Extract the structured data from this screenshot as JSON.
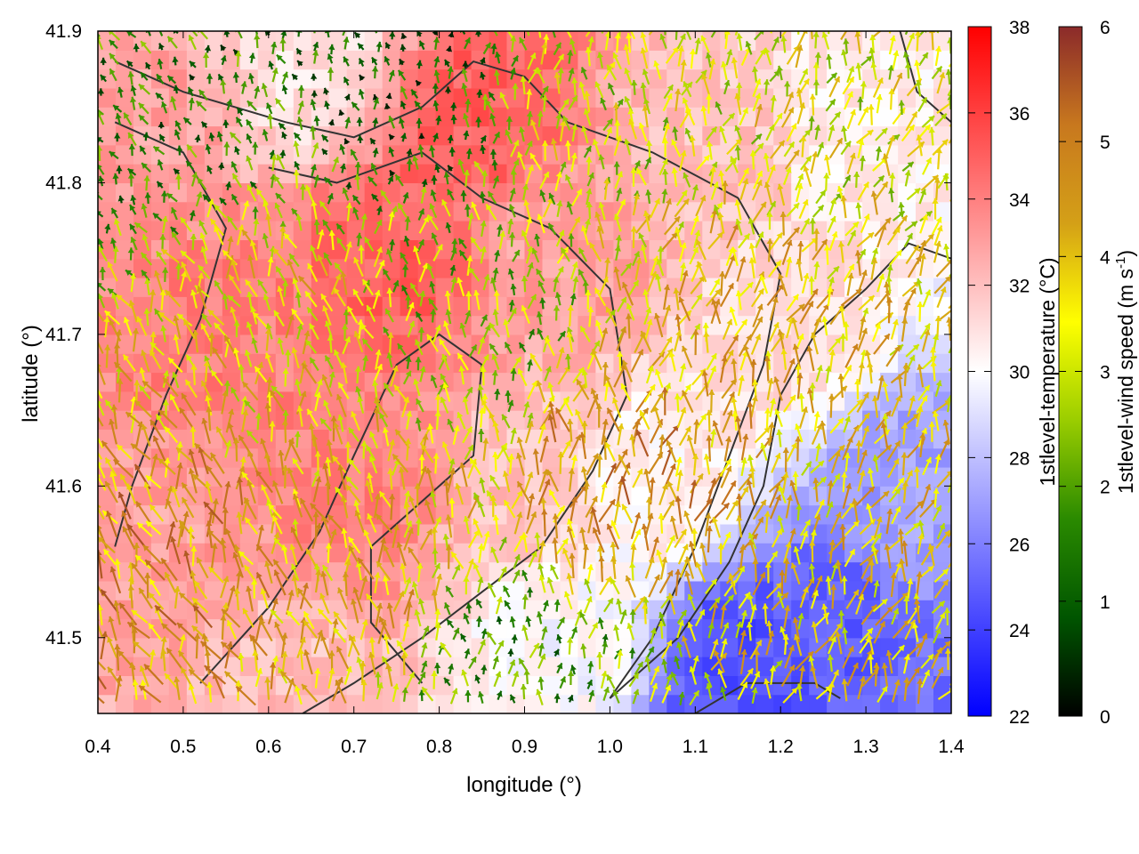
{
  "chart_data": {
    "type": "heatmap",
    "xlabel": "longitude (°)",
    "ylabel": "latitude (°)",
    "xlim": [
      0.4,
      1.4
    ],
    "ylim": [
      41.45,
      41.9
    ],
    "xticks": [
      "0.4",
      "0.5",
      "0.6",
      "0.7",
      "0.8",
      "0.9",
      "1.0",
      "1.1",
      "1.2",
      "1.3",
      "1.4"
    ],
    "yticks": [
      "41.5",
      "41.6",
      "41.7",
      "41.8",
      "41.9"
    ],
    "temperature_colorbar": {
      "label": "1stlevel-temperature (°C)",
      "range": [
        22,
        38
      ],
      "ticks": [
        "22",
        "24",
        "26",
        "28",
        "30",
        "32",
        "34",
        "36",
        "38"
      ],
      "colors": [
        "#0000ff",
        "#ffffff",
        "#ff0000"
      ]
    },
    "wind_colorbar": {
      "label_main": "1stlevel-wind speed (m s",
      "label_sup": "-1",
      "label_end": ")",
      "range": [
        0,
        6
      ],
      "ticks": [
        "0",
        "1",
        "2",
        "3",
        "4",
        "5",
        "6"
      ],
      "colors": [
        "#000000",
        "#005500",
        "#2a8a00",
        "#9acd00",
        "#ffff00",
        "#d4a017",
        "#c8781e",
        "#8b2a2a"
      ]
    },
    "temperature_regions": [
      {
        "lon": 0.45,
        "lat": 41.85,
        "temp": 33
      },
      {
        "lon": 0.65,
        "lat": 41.88,
        "temp": 31
      },
      {
        "lon": 0.85,
        "lat": 41.85,
        "temp": 35
      },
      {
        "lon": 0.75,
        "lat": 41.75,
        "temp": 35
      },
      {
        "lon": 0.55,
        "lat": 41.7,
        "temp": 34
      },
      {
        "lon": 0.7,
        "lat": 41.6,
        "temp": 34
      },
      {
        "lon": 0.5,
        "lat": 41.55,
        "temp": 33
      },
      {
        "lon": 0.95,
        "lat": 41.75,
        "temp": 33
      },
      {
        "lon": 1.1,
        "lat": 41.82,
        "temp": 32
      },
      {
        "lon": 1.3,
        "lat": 41.85,
        "temp": 30.5
      },
      {
        "lon": 1.2,
        "lat": 41.7,
        "temp": 31
      },
      {
        "lon": 1.35,
        "lat": 41.6,
        "temp": 27
      },
      {
        "lon": 1.25,
        "lat": 41.5,
        "temp": 25
      },
      {
        "lon": 1.15,
        "lat": 41.48,
        "temp": 24.5
      },
      {
        "lon": 0.95,
        "lat": 41.5,
        "temp": 30
      },
      {
        "lon": 0.6,
        "lat": 41.48,
        "temp": 32
      },
      {
        "lon": 0.9,
        "lat": 41.6,
        "temp": 32
      },
      {
        "lon": 1.05,
        "lat": 41.6,
        "temp": 30.5
      }
    ],
    "wind_regions": [
      {
        "lon": 0.5,
        "lat": 41.85,
        "speed": 1.5
      },
      {
        "lon": 0.75,
        "lat": 41.87,
        "speed": 1.0
      },
      {
        "lon": 1.0,
        "lat": 41.85,
        "speed": 3.0
      },
      {
        "lon": 0.6,
        "lat": 41.7,
        "speed": 3.5
      },
      {
        "lon": 0.85,
        "lat": 41.7,
        "speed": 2.5
      },
      {
        "lon": 0.5,
        "lat": 41.55,
        "speed": 4.5
      },
      {
        "lon": 0.7,
        "lat": 41.55,
        "speed": 4.0
      },
      {
        "lon": 1.0,
        "lat": 41.6,
        "speed": 4.5
      },
      {
        "lon": 1.15,
        "lat": 41.7,
        "speed": 4.0
      },
      {
        "lon": 1.3,
        "lat": 41.55,
        "speed": 3.8
      },
      {
        "lon": 0.9,
        "lat": 41.47,
        "speed": 1.8
      },
      {
        "lon": 1.25,
        "lat": 41.85,
        "speed": 3.2
      }
    ],
    "contours": [
      [
        [
          0.42,
          41.88
        ],
        [
          0.5,
          41.86
        ],
        [
          0.56,
          41.85
        ],
        [
          0.62,
          41.84
        ],
        [
          0.7,
          41.83
        ],
        [
          0.78,
          41.85
        ],
        [
          0.84,
          41.88
        ],
        [
          0.9,
          41.87
        ],
        [
          0.95,
          41.84
        ],
        [
          1.05,
          41.82
        ],
        [
          1.15,
          41.79
        ],
        [
          1.2,
          41.74
        ],
        [
          1.18,
          41.68
        ],
        [
          1.14,
          41.62
        ],
        [
          1.1,
          41.56
        ],
        [
          1.05,
          41.5
        ],
        [
          1.0,
          41.46
        ]
      ],
      [
        [
          0.42,
          41.84
        ],
        [
          0.5,
          41.82
        ],
        [
          0.55,
          41.77
        ],
        [
          0.52,
          41.71
        ],
        [
          0.48,
          41.66
        ],
        [
          0.44,
          41.6
        ],
        [
          0.42,
          41.56
        ]
      ],
      [
        [
          0.6,
          41.81
        ],
        [
          0.68,
          41.8
        ],
        [
          0.78,
          41.82
        ],
        [
          0.85,
          41.79
        ],
        [
          0.93,
          41.77
        ],
        [
          1.0,
          41.73
        ],
        [
          1.02,
          41.66
        ],
        [
          0.98,
          41.61
        ],
        [
          0.92,
          41.56
        ],
        [
          0.85,
          41.53
        ],
        [
          0.78,
          41.5
        ],
        [
          0.7,
          41.47
        ],
        [
          0.64,
          41.45
        ]
      ],
      [
        [
          0.52,
          41.47
        ],
        [
          0.6,
          41.52
        ],
        [
          0.66,
          41.57
        ],
        [
          0.7,
          41.62
        ],
        [
          0.75,
          41.68
        ],
        [
          0.8,
          41.7
        ],
        [
          0.85,
          41.68
        ],
        [
          0.84,
          41.62
        ],
        [
          0.78,
          41.59
        ],
        [
          0.72,
          41.56
        ],
        [
          0.72,
          41.51
        ],
        [
          0.78,
          41.47
        ]
      ],
      [
        [
          1.0,
          41.46
        ],
        [
          1.08,
          41.5
        ],
        [
          1.14,
          41.55
        ],
        [
          1.18,
          41.6
        ],
        [
          1.2,
          41.66
        ],
        [
          1.24,
          41.7
        ],
        [
          1.3,
          41.73
        ],
        [
          1.35,
          41.76
        ],
        [
          1.4,
          41.75
        ]
      ],
      [
        [
          1.1,
          41.45
        ],
        [
          1.16,
          41.47
        ],
        [
          1.24,
          41.47
        ],
        [
          1.27,
          41.46
        ]
      ],
      [
        [
          1.34,
          41.9
        ],
        [
          1.36,
          41.86
        ],
        [
          1.4,
          41.84
        ]
      ]
    ]
  }
}
